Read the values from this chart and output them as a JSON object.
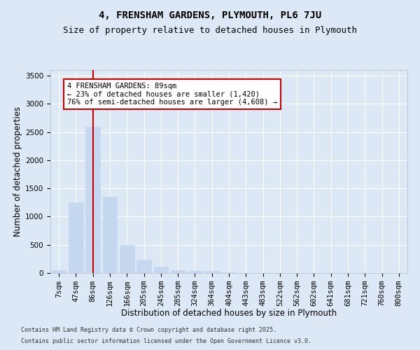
{
  "title": "4, FRENSHAM GARDENS, PLYMOUTH, PL6 7JU",
  "subtitle": "Size of property relative to detached houses in Plymouth",
  "xlabel": "Distribution of detached houses by size in Plymouth",
  "ylabel": "Number of detached properties",
  "categories": [
    "7sqm",
    "47sqm",
    "86sqm",
    "126sqm",
    "166sqm",
    "205sqm",
    "245sqm",
    "285sqm",
    "324sqm",
    "364sqm",
    "404sqm",
    "443sqm",
    "483sqm",
    "522sqm",
    "562sqm",
    "602sqm",
    "641sqm",
    "681sqm",
    "721sqm",
    "760sqm",
    "800sqm"
  ],
  "values": [
    50,
    1250,
    2600,
    1350,
    500,
    230,
    110,
    50,
    40,
    35,
    15,
    5,
    5,
    0,
    0,
    0,
    0,
    0,
    0,
    0,
    0
  ],
  "bar_color": "#c5d8f0",
  "bar_edgecolor": "#c5d8f0",
  "vline_x": 2,
  "vline_color": "#cc0000",
  "ylim": [
    0,
    3600
  ],
  "yticks": [
    0,
    500,
    1000,
    1500,
    2000,
    2500,
    3000,
    3500
  ],
  "annotation_text": "4 FRENSHAM GARDENS: 89sqm\n← 23% of detached houses are smaller (1,420)\n76% of semi-detached houses are larger (4,608) →",
  "annotation_box_facecolor": "#ffffff",
  "annotation_box_edgecolor": "#cc0000",
  "footnote1": "Contains HM Land Registry data © Crown copyright and database right 2025.",
  "footnote2": "Contains public sector information licensed under the Open Government Licence v3.0.",
  "background_color": "#dce8f5",
  "plot_background": "#dce8f5",
  "grid_color": "#ffffff",
  "title_fontsize": 10,
  "subtitle_fontsize": 9,
  "axis_label_fontsize": 8.5,
  "tick_fontsize": 7.5,
  "annotation_fontsize": 7.5,
  "footnote_fontsize": 6
}
